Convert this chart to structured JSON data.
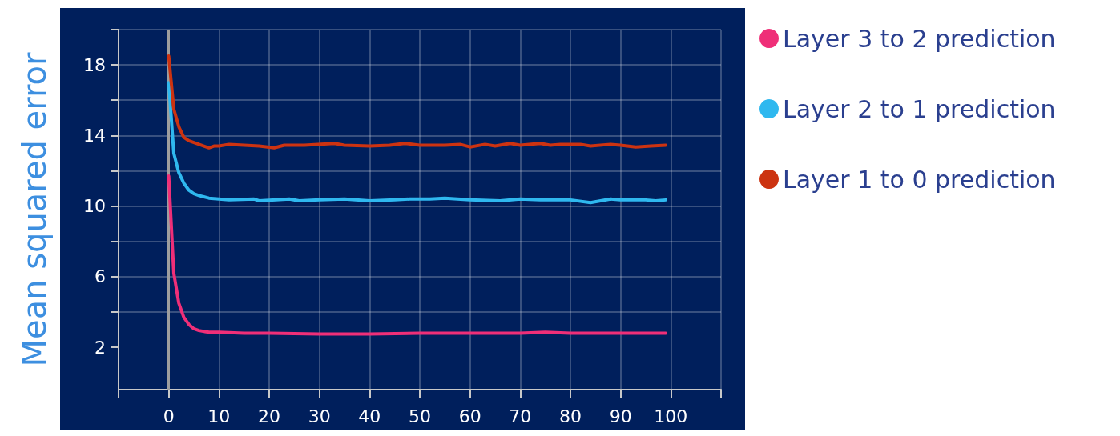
{
  "chart_data": {
    "type": "line",
    "ylabel": "Mean squared error",
    "series": [
      {
        "name": "Layer 3 to 2 prediction",
        "color": "#ef2f78",
        "x": [
          0,
          1,
          2,
          3,
          4,
          5,
          6,
          8,
          10,
          15,
          20,
          30,
          40,
          50,
          60,
          70,
          75,
          80,
          90,
          99
        ],
        "values": [
          11.7,
          6.2,
          4.5,
          3.7,
          3.3,
          3.05,
          2.95,
          2.85,
          2.85,
          2.8,
          2.8,
          2.75,
          2.75,
          2.8,
          2.8,
          2.8,
          2.85,
          2.8,
          2.8,
          2.8
        ]
      },
      {
        "name": "Layer 2 to 1 prediction",
        "color": "#2fb8ef",
        "x": [
          0,
          1,
          2,
          3,
          4,
          5,
          6,
          8,
          10,
          12,
          17,
          18,
          24,
          26,
          30,
          35,
          40,
          45,
          48,
          52,
          55,
          60,
          66,
          70,
          74,
          80,
          84,
          88,
          90,
          95,
          97,
          99
        ],
        "values": [
          17,
          13,
          11.9,
          11.3,
          10.9,
          10.7,
          10.6,
          10.45,
          10.4,
          10.35,
          10.4,
          10.3,
          10.4,
          10.3,
          10.35,
          10.4,
          10.3,
          10.35,
          10.4,
          10.4,
          10.45,
          10.35,
          10.3,
          10.4,
          10.35,
          10.35,
          10.2,
          10.4,
          10.35,
          10.35,
          10.3,
          10.35
        ]
      },
      {
        "name": "Layer 1 to 0 prediction",
        "color": "#cc3311",
        "x": [
          0,
          1,
          2,
          3,
          4,
          5,
          6,
          7,
          8,
          9,
          10,
          12,
          15,
          18,
          21,
          23,
          27,
          33,
          35,
          40,
          44,
          47,
          50,
          55,
          58,
          60,
          63,
          65,
          68,
          70,
          74,
          76,
          78,
          82,
          84,
          88,
          90,
          93,
          96,
          99
        ],
        "values": [
          18.5,
          15.5,
          14.5,
          13.9,
          13.7,
          13.6,
          13.5,
          13.4,
          13.3,
          13.4,
          13.4,
          13.5,
          13.45,
          13.4,
          13.3,
          13.45,
          13.45,
          13.55,
          13.45,
          13.4,
          13.45,
          13.55,
          13.45,
          13.45,
          13.5,
          13.35,
          13.5,
          13.4,
          13.55,
          13.45,
          13.55,
          13.45,
          13.5,
          13.5,
          13.4,
          13.5,
          13.45,
          13.35,
          13.4,
          13.45
        ]
      }
    ],
    "xlim": [
      -10,
      110
    ],
    "xticks": [
      {
        "value": -10,
        "label": null
      },
      0,
      10,
      20,
      30,
      40,
      50,
      60,
      70,
      80,
      90,
      100,
      {
        "value": 110,
        "label": null
      }
    ],
    "ylim": [
      -0.4,
      20
    ],
    "yticks": [
      2,
      {
        "value": 4,
        "label": null
      },
      6,
      {
        "value": 8,
        "label": null
      },
      10,
      {
        "value": 12,
        "label": null
      },
      14,
      {
        "value": 16,
        "label": null
      },
      18,
      {
        "value": 20,
        "label": null
      }
    ],
    "ref_lines": [
      {
        "axis": "x",
        "value": 0,
        "color": "#9e9e9e"
      }
    ],
    "grid": true,
    "legend": "right",
    "marker": "none",
    "line_style": "solid"
  }
}
